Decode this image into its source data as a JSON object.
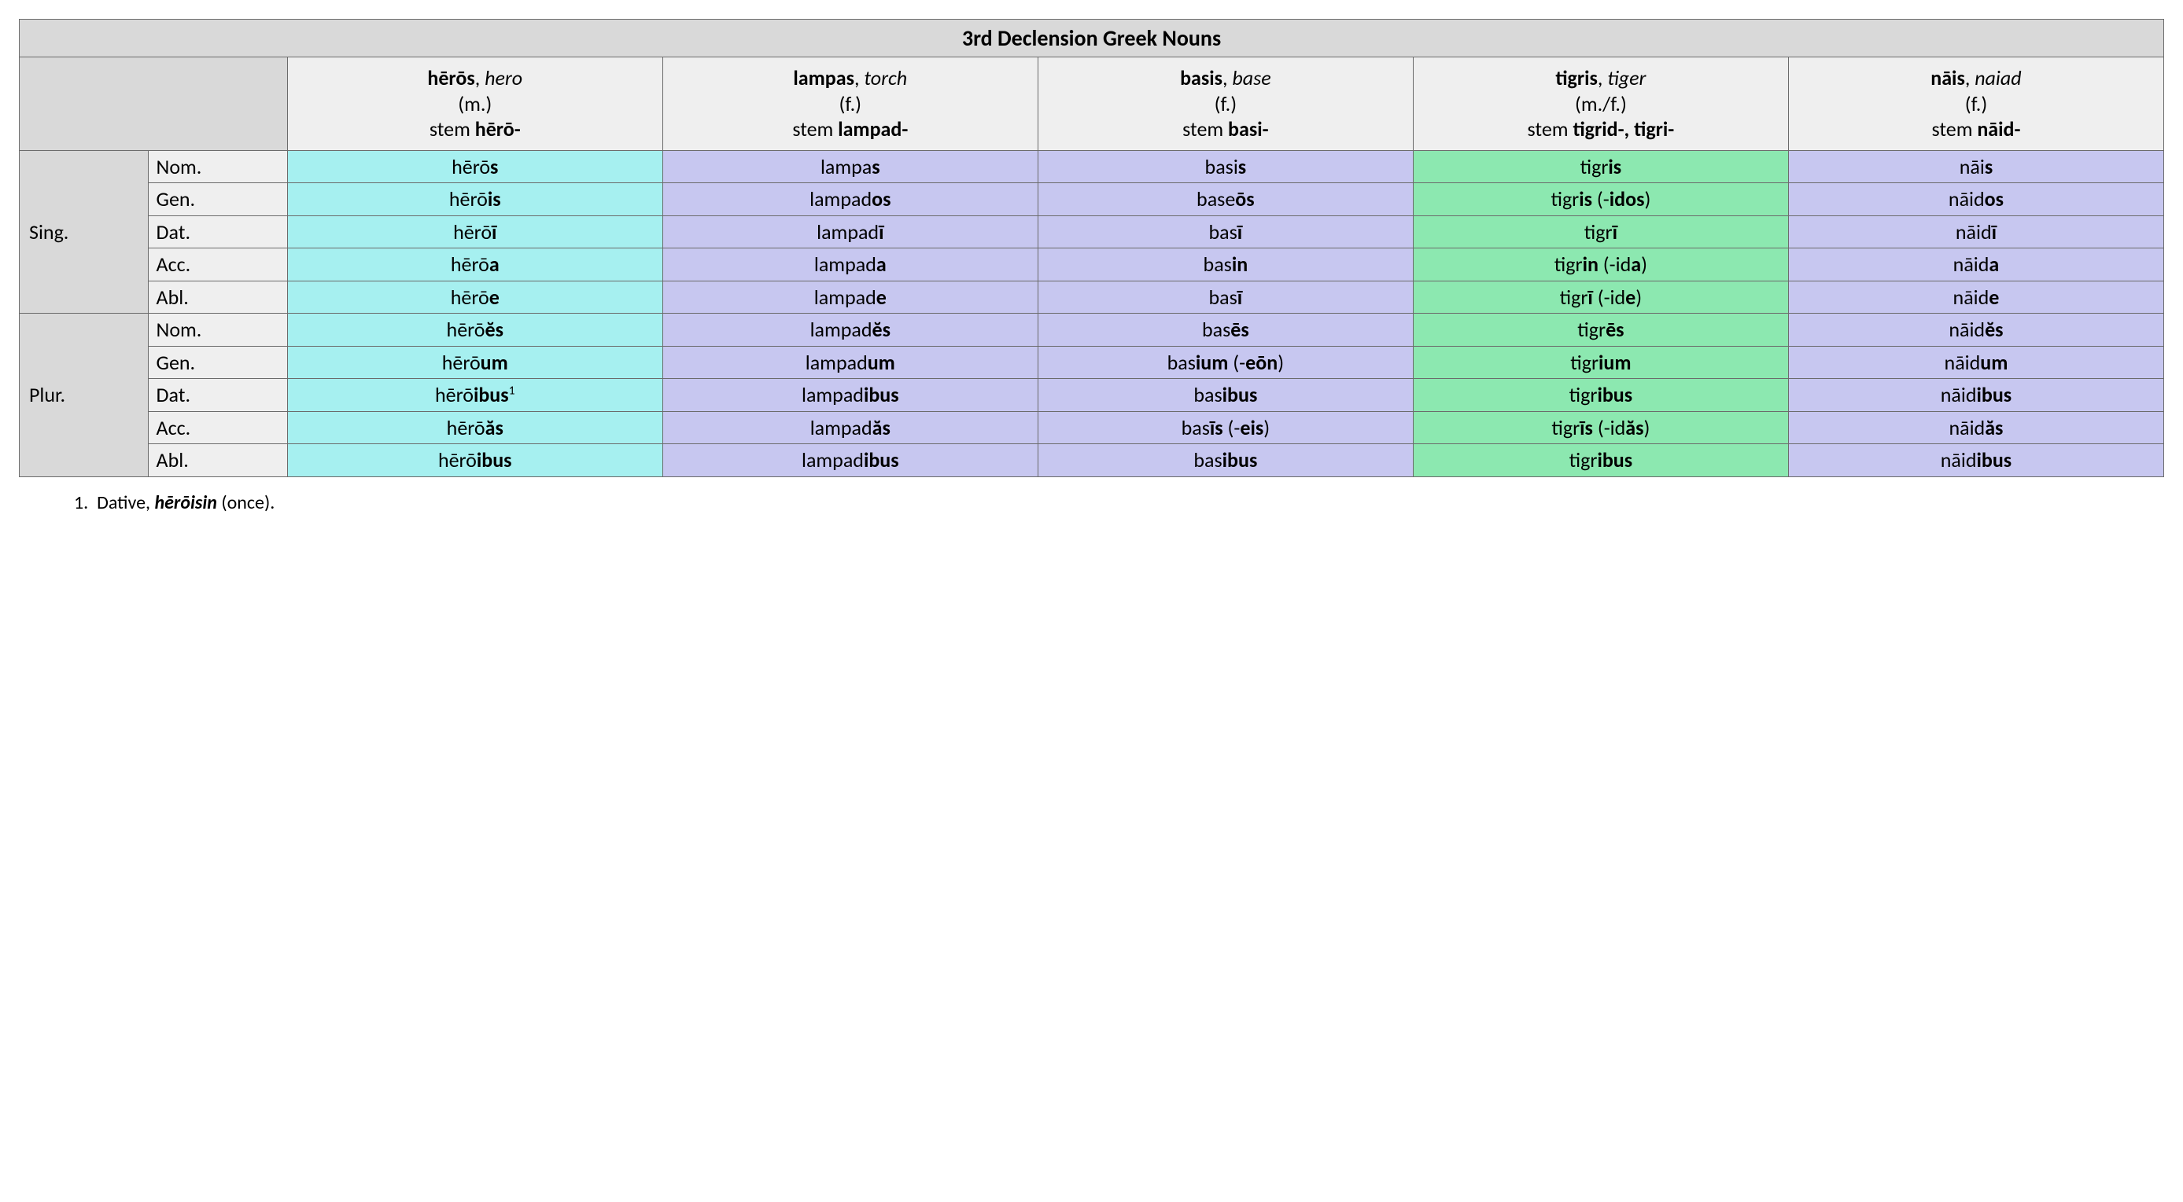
{
  "title": "3rd Declension Greek Nouns",
  "colors": {
    "header_bg": "#d9d9d9",
    "subhead_bg": "#efefef",
    "cyan": "#a6f0f0",
    "lavender": "#c7c7f0",
    "green": "#8ce8b0",
    "border": "#6b6b6b",
    "text": "#000000",
    "page_bg": "#ffffff"
  },
  "typography": {
    "title_fontsize": 28,
    "cell_fontsize": 26,
    "footnote_fontsize": 24,
    "font_family": "Calibri"
  },
  "columns": [
    {
      "lemma": "hērōs",
      "gloss": "hero",
      "gender": "(m.)",
      "stem_label": "stem ",
      "stem": "hērō-",
      "color": "cyan"
    },
    {
      "lemma": "lampas",
      "gloss": "torch",
      "gender": "(f.)",
      "stem_label": "stem ",
      "stem": "lampad-",
      "color": "lavender"
    },
    {
      "lemma": "basis",
      "gloss": "base",
      "gender": "(f.)",
      "stem_label": "stem ",
      "stem": "basi-",
      "color": "lavender"
    },
    {
      "lemma": "tigris",
      "gloss": "tiger",
      "gender": "(m./f.)",
      "stem_label": "stem ",
      "stem": "tigrid-, tigri-",
      "color": "green"
    },
    {
      "lemma": "nāis",
      "gloss": "naiad",
      "gender": "(f.)",
      "stem_label": "stem ",
      "stem": "nāid-",
      "color": "lavender"
    }
  ],
  "groups": [
    {
      "label": "Sing.",
      "cases": [
        "Nom.",
        "Gen.",
        "Dat.",
        "Acc.",
        "Abl."
      ]
    },
    {
      "label": "Plur.",
      "cases": [
        "Nom.",
        "Gen.",
        "Dat.",
        "Acc.",
        "Abl."
      ]
    }
  ],
  "cells": {
    "sing": {
      "nom": [
        {
          "pre": "hērō",
          "end": "s"
        },
        {
          "pre": "lampa",
          "end": "s"
        },
        {
          "pre": "basi",
          "end": "s"
        },
        {
          "pre": "tigr",
          "end": "is"
        },
        {
          "pre": "nāi",
          "end": "s"
        }
      ],
      "gen": [
        {
          "pre": "hērō",
          "end": "is"
        },
        {
          "pre": "lampad",
          "end": "os"
        },
        {
          "pre": "base",
          "end": "ōs"
        },
        {
          "pre": "tigr",
          "end": "is",
          "post": " (-",
          "end2": "idos",
          "post2": ")"
        },
        {
          "pre": "nāid",
          "end": "os"
        }
      ],
      "dat": [
        {
          "pre": "hērō",
          "end": "ī"
        },
        {
          "pre": "lampad",
          "end": "ī"
        },
        {
          "pre": "bas",
          "end": "ī"
        },
        {
          "pre": "tigr",
          "end": "ī"
        },
        {
          "pre": "nāid",
          "end": "ī"
        }
      ],
      "acc": [
        {
          "pre": "hērō",
          "end": "a"
        },
        {
          "pre": "lampad",
          "end": "a"
        },
        {
          "pre": "bas",
          "end": "in"
        },
        {
          "pre": "tigr",
          "end": "in",
          "post": " (-id",
          "end2": "a",
          "post2": ")"
        },
        {
          "pre": "nāid",
          "end": "a"
        }
      ],
      "abl": [
        {
          "pre": "hērō",
          "end": "e"
        },
        {
          "pre": "lampad",
          "end": "e"
        },
        {
          "pre": "bas",
          "end": "ī"
        },
        {
          "pre": "tigr",
          "end": "ī",
          "post": " (-id",
          "end2": "e",
          "post2": ")"
        },
        {
          "pre": "nāid",
          "end": "e"
        }
      ]
    },
    "plur": {
      "nom": [
        {
          "pre": "hērō",
          "end": "ĕs"
        },
        {
          "pre": "lampad",
          "end": "ĕs"
        },
        {
          "pre": "bas",
          "end": "ēs"
        },
        {
          "pre": "tigr",
          "end": "ēs"
        },
        {
          "pre": "nāid",
          "end": "ĕs"
        }
      ],
      "gen": [
        {
          "pre": "hērō",
          "end": "um"
        },
        {
          "pre": "lampad",
          "end": "um"
        },
        {
          "pre": "bas",
          "end": "ium",
          "post": " (-",
          "end2": "eōn",
          "post2": ")"
        },
        {
          "pre": "tigr",
          "end": "ium"
        },
        {
          "pre": "nāid",
          "end": "um"
        }
      ],
      "dat": [
        {
          "pre": "hērō",
          "end": "ibus",
          "sup": "1"
        },
        {
          "pre": "lampad",
          "end": "ibus"
        },
        {
          "pre": "bas",
          "end": "ibus"
        },
        {
          "pre": "tigr",
          "end": "ibus"
        },
        {
          "pre": "nāid",
          "end": "ibus"
        }
      ],
      "acc": [
        {
          "pre": "hērō",
          "end": "ăs"
        },
        {
          "pre": "lampad",
          "end": "ăs"
        },
        {
          "pre": "bas",
          "end": "īs",
          "post": " (-",
          "end2": "eis",
          "post2": ")"
        },
        {
          "pre": "tigr",
          "end": "īs",
          "post": " (-id",
          "end2": "ăs",
          "post2": ")"
        },
        {
          "pre": "nāid",
          "end": "ăs"
        }
      ],
      "abl": [
        {
          "pre": "hērō",
          "end": "ibus"
        },
        {
          "pre": "lampad",
          "end": "ibus"
        },
        {
          "pre": "bas",
          "end": "ibus"
        },
        {
          "pre": "tigr",
          "end": "ibus"
        },
        {
          "pre": "nāid",
          "end": "ibus"
        }
      ]
    }
  },
  "footnote": {
    "num": "1.",
    "lead": "Dative, ",
    "word": "hērōisin",
    "tail": " (once)."
  }
}
